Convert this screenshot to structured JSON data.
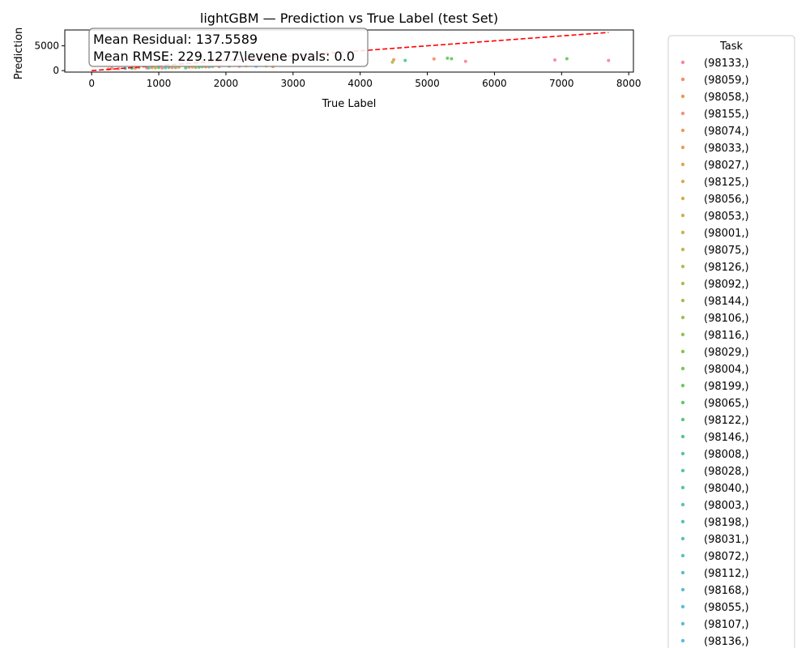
{
  "chart_data": {
    "type": "scatter",
    "title": "lightGBM — Prediction vs True Label (test Set)",
    "xlabel": "True Label",
    "ylabel": "Prediction",
    "xlim": [
      -400,
      8070
    ],
    "ylim": [
      -300,
      8200
    ],
    "xticks": [
      0,
      1000,
      2000,
      3000,
      4000,
      5000,
      6000,
      7000,
      8000
    ],
    "yticks": [
      0,
      5000
    ],
    "grid": false,
    "reference_line": {
      "style": "dashed",
      "color": "#ff0000",
      "from": [
        0,
        0
      ],
      "to": [
        7700,
        7700
      ]
    },
    "annotation": {
      "lines": [
        "Mean Residual: 137.5589",
        "Mean RMSE: 229.1277\\levene pvals: 0.0"
      ]
    },
    "legend": {
      "title": "Task",
      "placement": "right outside",
      "entries": [
        {
          "label": "(98133,)",
          "color": "#f77189"
        },
        {
          "label": "(98059,)",
          "color": "#f7754f"
        },
        {
          "label": "(98058,)",
          "color": "#ee8531"
        },
        {
          "label": "(98155,)",
          "color": "#f47a6a"
        },
        {
          "label": "(98074,)",
          "color": "#ec8b31"
        },
        {
          "label": "(98033,)",
          "color": "#e4922f"
        },
        {
          "label": "(98027,)",
          "color": "#db982f"
        },
        {
          "label": "(98125,)",
          "color": "#d39d2f"
        },
        {
          "label": "(98056,)",
          "color": "#cba22f"
        },
        {
          "label": "(98053,)",
          "color": "#c3a62f"
        },
        {
          "label": "(98001,)",
          "color": "#bba92f"
        },
        {
          "label": "(98075,)",
          "color": "#b3ac2f"
        },
        {
          "label": "(98126,)",
          "color": "#aaaf30"
        },
        {
          "label": "(98092,)",
          "color": "#a1b231"
        },
        {
          "label": "(98144,)",
          "color": "#97b431"
        },
        {
          "label": "(98106,)",
          "color": "#8cb732"
        },
        {
          "label": "(98116,)",
          "color": "#80b932"
        },
        {
          "label": "(98029,)",
          "color": "#72bb33"
        },
        {
          "label": "(98004,)",
          "color": "#62bd37"
        },
        {
          "label": "(98199,)",
          "color": "#50bf45"
        },
        {
          "label": "(98065,)",
          "color": "#3ec05a"
        },
        {
          "label": "(98122,)",
          "color": "#36c06c"
        },
        {
          "label": "(98146,)",
          "color": "#35bf7c"
        },
        {
          "label": "(98008,)",
          "color": "#35be88"
        },
        {
          "label": "(98028,)",
          "color": "#36bd92"
        },
        {
          "label": "(98040,)",
          "color": "#36bc9b"
        },
        {
          "label": "(98003,)",
          "color": "#37bba2"
        },
        {
          "label": "(98198,)",
          "color": "#37baa9"
        },
        {
          "label": "(98031,)",
          "color": "#38b9b0"
        },
        {
          "label": "(98072,)",
          "color": "#38b8b6"
        },
        {
          "label": "(98112,)",
          "color": "#39b7bd"
        },
        {
          "label": "(98168,)",
          "color": "#39b6c3"
        },
        {
          "label": "(98055,)",
          "color": "#3ab5c9"
        },
        {
          "label": "(98107,)",
          "color": "#3bb3cf"
        },
        {
          "label": "(98136,)",
          "color": "#3cb1d6"
        }
      ]
    },
    "series": [
      {
        "task": "(98133,)",
        "points": [
          [
            6900,
            2150
          ],
          [
            7700,
            2050
          ],
          [
            5570,
            1850
          ],
          [
            820,
            560
          ],
          [
            300,
            430
          ],
          [
            1200,
            620
          ],
          [
            2200,
            900
          ]
        ]
      },
      {
        "task": "(98059,)",
        "points": [
          [
            5100,
            2350
          ],
          [
            650,
            500
          ],
          [
            1450,
            700
          ],
          [
            2700,
            820
          ]
        ]
      },
      {
        "task": "(98058,)",
        "points": [
          [
            4500,
            2200
          ],
          [
            900,
            600
          ],
          [
            1700,
            760
          ]
        ]
      },
      {
        "task": "(98155,)",
        "points": [
          [
            400,
            380
          ],
          [
            1050,
            520
          ],
          [
            1900,
            800
          ]
        ]
      },
      {
        "task": "(98074,)",
        "points": [
          [
            700,
            650
          ],
          [
            2300,
            980
          ]
        ]
      },
      {
        "task": "(98033,)",
        "points": [
          [
            1300,
            700
          ],
          [
            250,
            300
          ]
        ]
      },
      {
        "task": "(98125,)",
        "points": [
          [
            1500,
            720
          ],
          [
            2050,
            880
          ]
        ]
      },
      {
        "task": "(98001,)",
        "points": [
          [
            950,
            560
          ],
          [
            1800,
            790
          ]
        ]
      },
      {
        "task": "(98092,)",
        "points": [
          [
            1550,
            650
          ],
          [
            4480,
            1700
          ]
        ]
      },
      {
        "task": "(98106,)",
        "points": [
          [
            1250,
            600
          ],
          [
            2600,
            950
          ]
        ]
      },
      {
        "task": "(98029,)",
        "points": [
          [
            1150,
            640
          ],
          [
            1650,
            780
          ]
        ]
      },
      {
        "task": "(98199,)",
        "points": [
          [
            7080,
            2400
          ],
          [
            5300,
            2500
          ],
          [
            5360,
            2400
          ]
        ]
      },
      {
        "task": "(98065,)",
        "points": [
          [
            1000,
            620
          ],
          [
            1400,
            560
          ]
        ]
      },
      {
        "task": "(98146,)",
        "points": [
          [
            4670,
            2050
          ],
          [
            600,
            480
          ]
        ]
      },
      {
        "task": "(98040,)",
        "points": [
          [
            1600,
            700
          ],
          [
            850,
            540
          ]
        ]
      },
      {
        "task": "(98112,)",
        "points": [
          [
            1750,
            760
          ],
          [
            500,
            420
          ]
        ]
      },
      {
        "task": "(98136,)",
        "points": [
          [
            1100,
            580
          ],
          [
            2450,
            900
          ]
        ]
      }
    ]
  }
}
